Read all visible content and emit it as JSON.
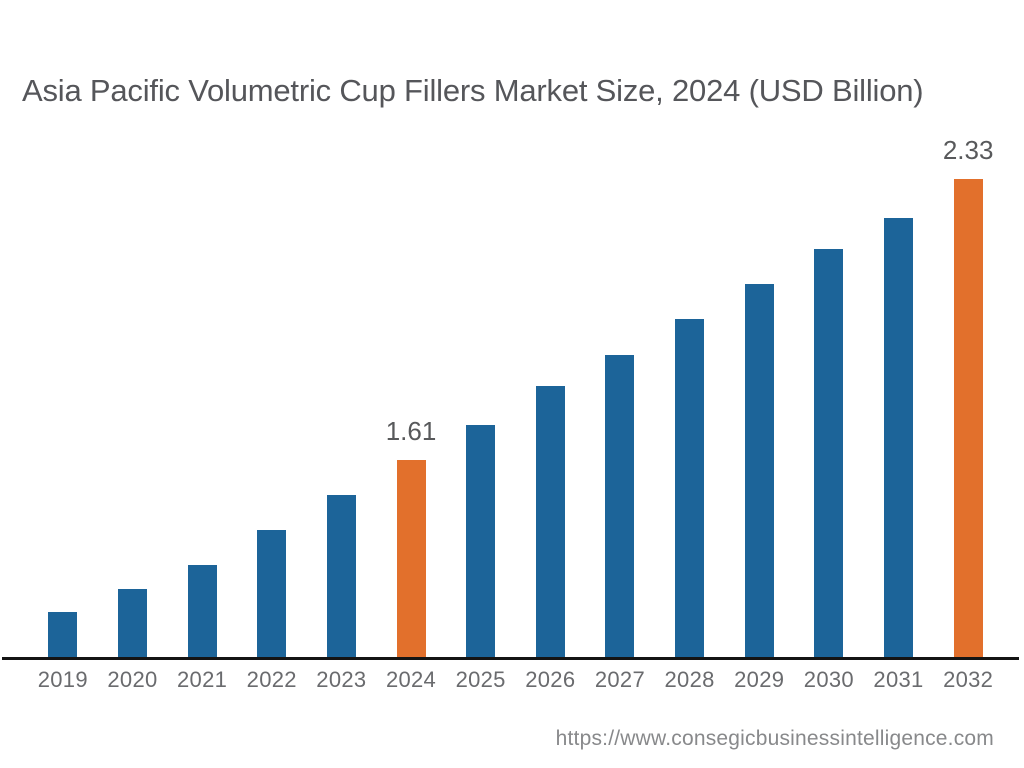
{
  "page": {
    "title": "Asia Pacific Volumetric Cup Fillers Market Size, 2024 (USD Billion)",
    "source_url": "https://www.consegicbusinessintelligence.com"
  },
  "colors": {
    "background": "#ffffff",
    "bar_default": "#1c6499",
    "bar_highlight": "#e2702c",
    "title_text": "#55565a",
    "value_label_text": "#58595b",
    "axis_label_text": "#6a6b6e",
    "source_text": "#88898b",
    "axis_line": "#141414"
  },
  "chart_data": {
    "type": "bar",
    "title": "Asia Pacific Volumetric Cup Fillers Market Size, 2024 (USD Billion)",
    "xlabel": "",
    "ylabel": "",
    "categories": [
      "2019",
      "2020",
      "2021",
      "2022",
      "2023",
      "2024",
      "2025",
      "2026",
      "2027",
      "2028",
      "2029",
      "2030",
      "2031",
      "2032"
    ],
    "values": [
      1.22,
      1.28,
      1.34,
      1.43,
      1.52,
      1.61,
      1.7,
      1.8,
      1.88,
      1.97,
      2.06,
      2.15,
      2.23,
      2.33
    ],
    "value_labels": {
      "2024": "1.61",
      "2032": "2.33"
    },
    "highlight_categories": [
      "2024",
      "2032"
    ],
    "ylim": [
      1.105,
      2.43
    ],
    "grid": false,
    "legend": false,
    "legend_position": "none"
  }
}
